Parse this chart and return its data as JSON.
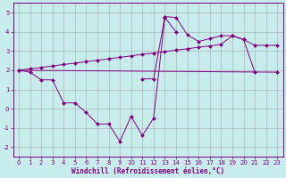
{
  "bg_color": "#c8ecec",
  "line_color": "#800080",
  "grid_color": "#aaaaaa",
  "xlabel": "Windchill (Refroidissement éolien,°C)",
  "curve1_x": [
    0,
    1,
    2,
    3,
    4,
    5,
    6,
    7,
    8,
    9,
    10,
    11,
    12,
    13,
    14
  ],
  "curve1_y": [
    2.0,
    1.9,
    1.5,
    1.5,
    0.3,
    0.3,
    -0.2,
    -0.8,
    -0.8,
    -1.7,
    -0.4,
    -1.4,
    -0.5,
    4.75,
    4.0
  ],
  "curve2_x": [
    0,
    23
  ],
  "curve2_y": [
    2.0,
    1.9
  ],
  "curve3_x": [
    0,
    1,
    2,
    3,
    4,
    5,
    6,
    7,
    8,
    9,
    10,
    11,
    12,
    13,
    14,
    15,
    16,
    17,
    18,
    19,
    20,
    21,
    22,
    23
  ],
  "curve3_y": [
    2.0,
    2.07,
    2.15,
    2.22,
    2.3,
    2.37,
    2.45,
    2.52,
    2.6,
    2.67,
    2.75,
    2.83,
    2.9,
    2.97,
    3.05,
    3.12,
    3.2,
    3.27,
    3.35,
    3.8,
    3.6,
    3.3,
    3.3,
    3.3
  ],
  "curve4_x": [
    11,
    12,
    13,
    14,
    15,
    16,
    17,
    18,
    19,
    20,
    21
  ],
  "curve4_y": [
    1.55,
    1.55,
    4.8,
    4.75,
    3.85,
    3.5,
    3.65,
    3.8,
    3.8,
    3.6,
    1.9
  ],
  "ylim": [
    -2.5,
    5.5
  ],
  "xlim": [
    -0.5,
    23.5
  ],
  "xticks": [
    0,
    1,
    2,
    3,
    4,
    5,
    6,
    7,
    8,
    9,
    10,
    11,
    12,
    13,
    14,
    15,
    16,
    17,
    18,
    19,
    20,
    21,
    22,
    23
  ],
  "yticks": [
    -2,
    -1,
    0,
    1,
    2,
    3,
    4,
    5
  ],
  "marker": "D",
  "marker_size": 2.2,
  "linewidth": 0.7,
  "tick_fontsize": 5.0,
  "xlabel_fontsize": 5.5
}
